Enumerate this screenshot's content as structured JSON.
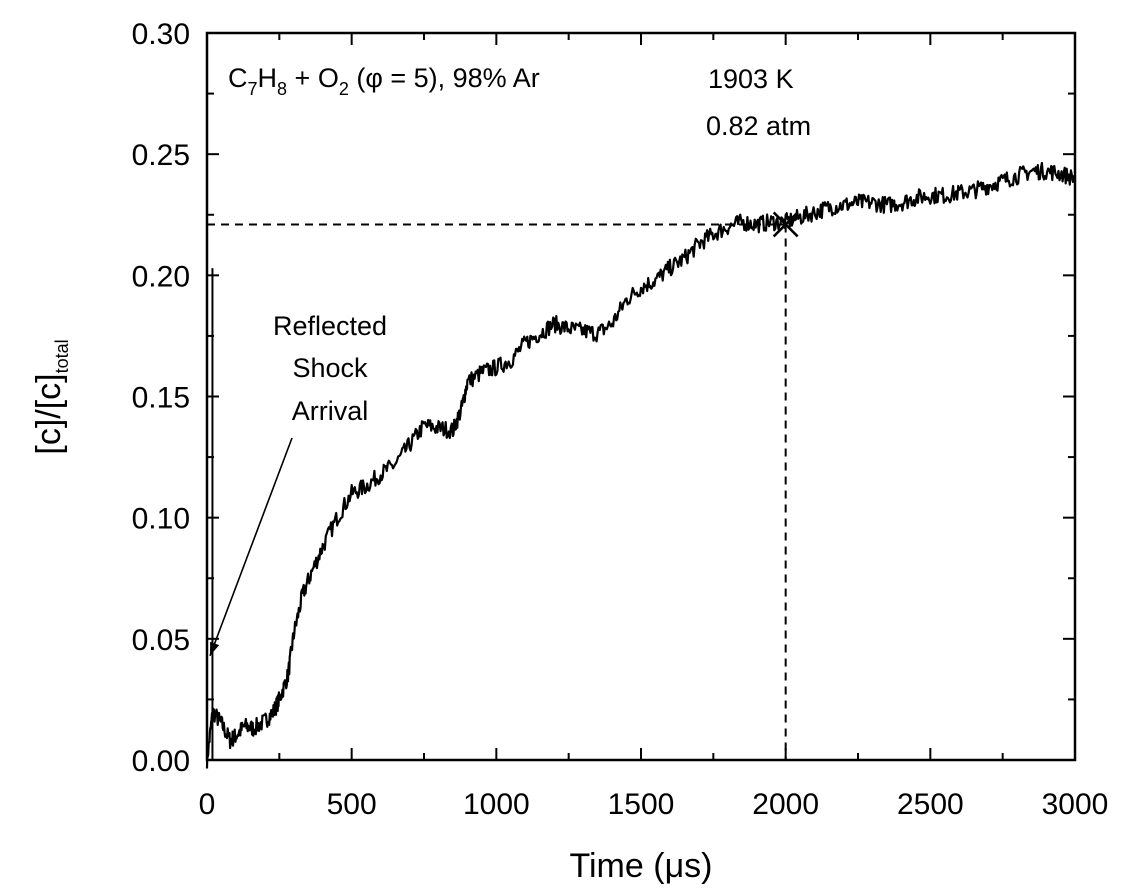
{
  "chart_data": {
    "type": "line",
    "xlabel": "Time",
    "xlabel_unit": "(μs)",
    "ylabel_main": "[c]/[c]",
    "ylabel_sub": "total",
    "xlim": [
      0,
      3000
    ],
    "ylim": [
      0,
      0.3
    ],
    "x_ticks": [
      "0",
      "500",
      "1000",
      "1500",
      "2000",
      "2500",
      "3000"
    ],
    "y_ticks": [
      "0.00",
      "0.05",
      "0.10",
      "0.15",
      "0.20",
      "0.25",
      "0.30"
    ],
    "grid": false,
    "legend": "none",
    "series": [
      {
        "x": [
          0,
          20,
          50,
          80,
          100,
          130,
          160,
          200,
          230,
          250,
          280,
          300,
          330,
          360,
          400,
          450,
          500,
          550,
          600,
          650,
          700,
          750,
          800,
          850,
          880,
          900,
          950,
          1000,
          1050,
          1100,
          1150,
          1200,
          1250,
          1300,
          1350,
          1400,
          1450,
          1500,
          1550,
          1600,
          1650,
          1700,
          1750,
          1800,
          1850,
          1900,
          1950,
          2000,
          2050,
          2100,
          2150,
          2200,
          2250,
          2300,
          2350,
          2400,
          2450,
          2500,
          2550,
          2600,
          2650,
          2700,
          2750,
          2800,
          2850,
          2900,
          2950,
          3000
        ],
        "y": [
          0.0,
          0.02,
          0.015,
          0.008,
          0.01,
          0.014,
          0.013,
          0.016,
          0.02,
          0.025,
          0.035,
          0.052,
          0.068,
          0.077,
          0.088,
          0.1,
          0.11,
          0.113,
          0.118,
          0.122,
          0.13,
          0.138,
          0.137,
          0.136,
          0.145,
          0.156,
          0.16,
          0.162,
          0.165,
          0.172,
          0.176,
          0.18,
          0.178,
          0.177,
          0.176,
          0.18,
          0.19,
          0.195,
          0.198,
          0.203,
          0.207,
          0.213,
          0.217,
          0.22,
          0.222,
          0.221,
          0.222,
          0.222,
          0.224,
          0.226,
          0.228,
          0.229,
          0.23,
          0.23,
          0.229,
          0.23,
          0.232,
          0.233,
          0.233,
          0.234,
          0.235,
          0.237,
          0.239,
          0.241,
          0.243,
          0.243,
          0.242,
          0.24
        ]
      }
    ],
    "annotations": {
      "mixture": "+ O",
      "mixture_rest": "(φ = 5), 98% Ar",
      "species_c": "C",
      "sub_7": "7",
      "species_h": "H",
      "sub_8": "8",
      "sub_2": "2",
      "temperature": "1903 K",
      "pressure": "0.82 atm",
      "arrow_line1": "Reflected",
      "arrow_line2": "Shock",
      "arrow_line3": "Arrival"
    },
    "reference_point": {
      "x": 2000,
      "y": 0.221
    },
    "shock_arrival_spike": {
      "x": 5,
      "y": 0.203
    }
  }
}
